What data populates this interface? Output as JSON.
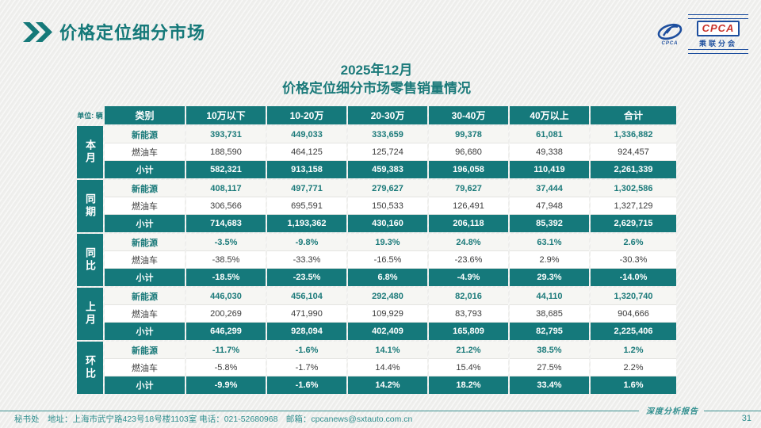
{
  "page": {
    "header_title": "价格定位细分市场",
    "title_line1": "2025年12月",
    "title_line2": "价格定位细分市场零售销量情况",
    "unit_label": "单位: 辆",
    "footer": {
      "contact": "秘书处　地址：上海市武宁路423号18号楼1103室 电话：021-52680968　邮箱：cpcanews@sxtauto.com.cn",
      "report_label": "深度分析报告",
      "page_number": "31"
    }
  },
  "logo": {
    "icon_caption": "CPCA",
    "text": "CPCA",
    "subtext": "乘联分会"
  },
  "icons": {
    "header_icon": "double-chevron-icon",
    "logo_icon": "swoosh-ellipse-icon"
  },
  "colors": {
    "teal": "#15797B",
    "teal_text": "#1B7A7A",
    "footer_teal": "#2F8E8E",
    "logo_blue": "#1D4E9E",
    "logo_red": "#C9342C"
  },
  "table": {
    "columns": [
      "类别",
      "10万以下",
      "10-20万",
      "20-30万",
      "30-40万",
      "40万以上",
      "合计"
    ],
    "groups": [
      {
        "label": "本月",
        "rows": [
          {
            "type": "nev",
            "label": "新能源",
            "values": [
              "393,731",
              "449,033",
              "333,659",
              "99,378",
              "61,081",
              "1,336,882"
            ]
          },
          {
            "type": "ice",
            "label": "燃油车",
            "values": [
              "188,590",
              "464,125",
              "125,724",
              "96,680",
              "49,338",
              "924,457"
            ]
          },
          {
            "type": "subtotal",
            "label": "小计",
            "values": [
              "582,321",
              "913,158",
              "459,383",
              "196,058",
              "110,419",
              "2,261,339"
            ]
          }
        ]
      },
      {
        "label": "同期",
        "rows": [
          {
            "type": "nev",
            "label": "新能源",
            "values": [
              "408,117",
              "497,771",
              "279,627",
              "79,627",
              "37,444",
              "1,302,586"
            ]
          },
          {
            "type": "ice",
            "label": "燃油车",
            "values": [
              "306,566",
              "695,591",
              "150,533",
              "126,491",
              "47,948",
              "1,327,129"
            ]
          },
          {
            "type": "subtotal",
            "label": "小计",
            "values": [
              "714,683",
              "1,193,362",
              "430,160",
              "206,118",
              "85,392",
              "2,629,715"
            ]
          }
        ]
      },
      {
        "label": "同比",
        "rows": [
          {
            "type": "nev",
            "label": "新能源",
            "values": [
              "-3.5%",
              "-9.8%",
              "19.3%",
              "24.8%",
              "63.1%",
              "2.6%"
            ]
          },
          {
            "type": "ice",
            "label": "燃油车",
            "values": [
              "-38.5%",
              "-33.3%",
              "-16.5%",
              "-23.6%",
              "2.9%",
              "-30.3%"
            ]
          },
          {
            "type": "subtotal",
            "label": "小计",
            "values": [
              "-18.5%",
              "-23.5%",
              "6.8%",
              "-4.9%",
              "29.3%",
              "-14.0%"
            ]
          }
        ]
      },
      {
        "label": "上月",
        "rows": [
          {
            "type": "nev",
            "label": "新能源",
            "values": [
              "446,030",
              "456,104",
              "292,480",
              "82,016",
              "44,110",
              "1,320,740"
            ]
          },
          {
            "type": "ice",
            "label": "燃油车",
            "values": [
              "200,269",
              "471,990",
              "109,929",
              "83,793",
              "38,685",
              "904,666"
            ]
          },
          {
            "type": "subtotal",
            "label": "小计",
            "values": [
              "646,299",
              "928,094",
              "402,409",
              "165,809",
              "82,795",
              "2,225,406"
            ]
          }
        ]
      },
      {
        "label": "环比",
        "rows": [
          {
            "type": "nev",
            "label": "新能源",
            "values": [
              "-11.7%",
              "-1.6%",
              "14.1%",
              "21.2%",
              "38.5%",
              "1.2%"
            ]
          },
          {
            "type": "ice",
            "label": "燃油车",
            "values": [
              "-5.8%",
              "-1.7%",
              "14.4%",
              "15.4%",
              "27.5%",
              "2.2%"
            ]
          },
          {
            "type": "subtotal",
            "label": "小计",
            "values": [
              "-9.9%",
              "-1.6%",
              "14.2%",
              "18.2%",
              "33.4%",
              "1.6%"
            ]
          }
        ]
      }
    ]
  }
}
